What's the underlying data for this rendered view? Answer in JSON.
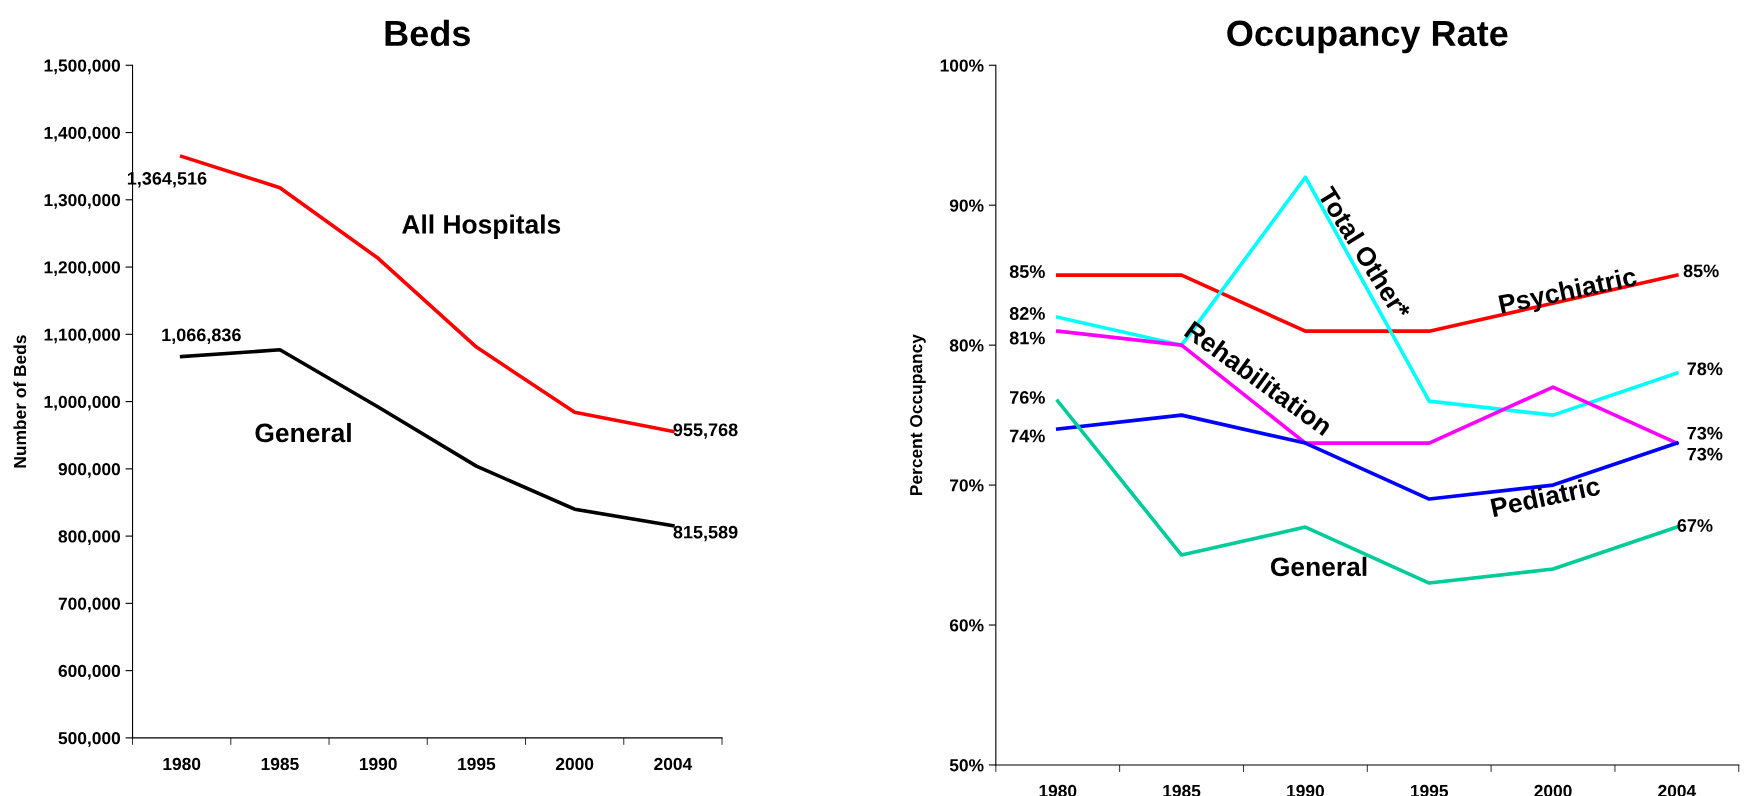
{
  "chart_data": [
    {
      "type": "line",
      "title": "Beds",
      "ylabel": "Number of Beds",
      "categories": [
        "1980",
        "1985",
        "1990",
        "1995",
        "2000",
        "2004"
      ],
      "ylim": [
        500000,
        1500000
      ],
      "yticks": [
        {
          "value": 500000,
          "label": "500,000"
        },
        {
          "value": 600000,
          "label": "600,000"
        },
        {
          "value": 700000,
          "label": "700,000"
        },
        {
          "value": 800000,
          "label": "800,000"
        },
        {
          "value": 900000,
          "label": "900,000"
        },
        {
          "value": 1000000,
          "label": "1,000,000"
        },
        {
          "value": 1100000,
          "label": "1,100,000"
        },
        {
          "value": 1200000,
          "label": "1,200,000"
        },
        {
          "value": 1300000,
          "label": "1,300,000"
        },
        {
          "value": 1400000,
          "label": "1,400,000"
        },
        {
          "value": 1500000,
          "label": "1,500,000"
        }
      ],
      "grid": false,
      "legend": false,
      "marker": "none",
      "line_style": "solid",
      "series": [
        {
          "name": "All Hospitals",
          "color": "#ff0000",
          "values": [
            1364516,
            1318000,
            1213000,
            1081000,
            984000,
            955768
          ],
          "value_labels": [
            "1,364,516",
            null,
            null,
            null,
            null,
            "955,768"
          ]
        },
        {
          "name": "General",
          "color": "#000000",
          "values": [
            1066836,
            1077000,
            992000,
            904000,
            840000,
            815589
          ],
          "value_labels": [
            "1,066,836",
            null,
            null,
            null,
            null,
            "815,589"
          ]
        }
      ]
    },
    {
      "type": "line",
      "title": "Occupancy Rate",
      "ylabel": "Percent Occupancy",
      "categories": [
        "1980",
        "1985",
        "1990",
        "1995",
        "2000",
        "2004"
      ],
      "ylim": [
        50,
        100
      ],
      "yticks": [
        {
          "value": 50,
          "label": "50%"
        },
        {
          "value": 60,
          "label": "60%"
        },
        {
          "value": 70,
          "label": "70%"
        },
        {
          "value": 80,
          "label": "80%"
        },
        {
          "value": 90,
          "label": "90%"
        },
        {
          "value": 100,
          "label": "100%"
        }
      ],
      "grid": false,
      "legend": false,
      "marker": "none",
      "line_style": "solid",
      "series": [
        {
          "name": "Psychiatric",
          "color": "#ff0000",
          "values": [
            85,
            85,
            81,
            81,
            83,
            85
          ],
          "value_labels": [
            "85%",
            null,
            null,
            null,
            null,
            "85%"
          ]
        },
        {
          "name": "Total Other*",
          "color": "#00ffff",
          "values": [
            82,
            80,
            92,
            76,
            75,
            78
          ],
          "value_labels": [
            "82%",
            null,
            null,
            null,
            null,
            "78%"
          ]
        },
        {
          "name": "Rehabilitation",
          "color": "#ff00ff",
          "values": [
            81,
            80,
            73,
            73,
            77,
            73
          ],
          "value_labels": [
            "81%",
            null,
            null,
            null,
            null,
            "73%"
          ]
        },
        {
          "name": "Pediatric",
          "color": "#0000ff",
          "values": [
            74,
            75,
            73,
            69,
            70,
            73
          ],
          "value_labels": [
            "74%",
            null,
            null,
            null,
            null,
            "73%"
          ]
        },
        {
          "name": "General",
          "color": "#00cc99",
          "values": [
            76,
            65,
            67,
            63,
            64,
            67
          ],
          "value_labels": [
            "76%",
            null,
            null,
            null,
            null,
            "67%"
          ]
        }
      ]
    }
  ]
}
